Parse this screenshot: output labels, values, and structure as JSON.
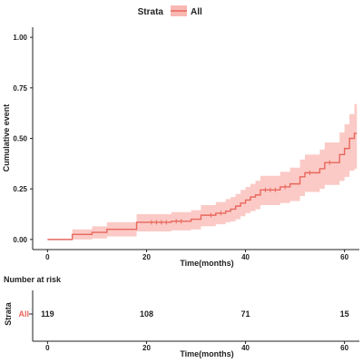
{
  "legend": {
    "title": "Strata",
    "label": "All"
  },
  "chart_data": {
    "type": "line",
    "ylabel": "Cumulative event",
    "xlabel": "Time(months)",
    "xlim": [
      -3,
      63
    ],
    "ylim": [
      -0.05,
      1.05
    ],
    "x_ticks": [
      0,
      20,
      40,
      60
    ],
    "y_ticks": [
      0.0,
      0.25,
      0.5,
      0.75,
      1.0
    ],
    "y_tick_labels": [
      "0.00",
      "0.25",
      "0.50",
      "0.75",
      "1.00"
    ],
    "grid": false,
    "legend_position": "top",
    "series": [
      {
        "name": "All",
        "color": "#e8675c",
        "band_color": "#f9b8b3",
        "steps": [
          [
            0,
            0.0,
            0.0,
            0.0
          ],
          [
            5,
            0.025,
            0.0,
            0.05
          ],
          [
            9,
            0.035,
            0.005,
            0.065
          ],
          [
            12,
            0.05,
            0.015,
            0.085
          ],
          [
            18,
            0.085,
            0.04,
            0.125
          ],
          [
            25,
            0.09,
            0.045,
            0.135
          ],
          [
            29,
            0.1,
            0.05,
            0.145
          ],
          [
            31,
            0.12,
            0.065,
            0.17
          ],
          [
            34,
            0.13,
            0.075,
            0.185
          ],
          [
            36,
            0.14,
            0.085,
            0.2
          ],
          [
            37,
            0.15,
            0.09,
            0.21
          ],
          [
            38,
            0.165,
            0.1,
            0.225
          ],
          [
            39,
            0.18,
            0.115,
            0.245
          ],
          [
            40,
            0.195,
            0.13,
            0.26
          ],
          [
            41,
            0.21,
            0.14,
            0.275
          ],
          [
            42,
            0.22,
            0.15,
            0.29
          ],
          [
            43,
            0.245,
            0.17,
            0.315
          ],
          [
            47,
            0.26,
            0.18,
            0.335
          ],
          [
            49,
            0.275,
            0.19,
            0.355
          ],
          [
            51,
            0.31,
            0.215,
            0.395
          ],
          [
            52,
            0.33,
            0.235,
            0.42
          ],
          [
            55,
            0.35,
            0.25,
            0.445
          ],
          [
            56,
            0.38,
            0.27,
            0.48
          ],
          [
            59,
            0.42,
            0.29,
            0.53
          ],
          [
            60,
            0.45,
            0.31,
            0.57
          ],
          [
            61,
            0.5,
            0.34,
            0.62
          ],
          [
            62,
            0.525,
            0.35,
            0.67
          ]
        ],
        "x_end": 62.5,
        "censor_marks": [
          [
            21,
            0.085
          ],
          [
            22,
            0.085
          ],
          [
            23,
            0.085
          ],
          [
            24,
            0.085
          ],
          [
            26,
            0.09
          ],
          [
            27,
            0.09
          ],
          [
            33,
            0.12
          ],
          [
            35,
            0.13
          ],
          [
            44,
            0.245
          ],
          [
            45,
            0.245
          ],
          [
            46,
            0.245
          ],
          [
            48,
            0.26
          ],
          [
            53,
            0.33
          ],
          [
            57,
            0.38
          ]
        ]
      }
    ]
  },
  "risk_table": {
    "title": "Number at risk",
    "ylabel": "Strata",
    "row_label": "All",
    "xlabel": "Time(months)",
    "x_ticks": [
      0,
      20,
      40,
      60
    ],
    "counts": [
      {
        "x": 0,
        "value": "119"
      },
      {
        "x": 20,
        "value": "108"
      },
      {
        "x": 40,
        "value": "71"
      },
      {
        "x": 60,
        "value": "15"
      }
    ]
  }
}
